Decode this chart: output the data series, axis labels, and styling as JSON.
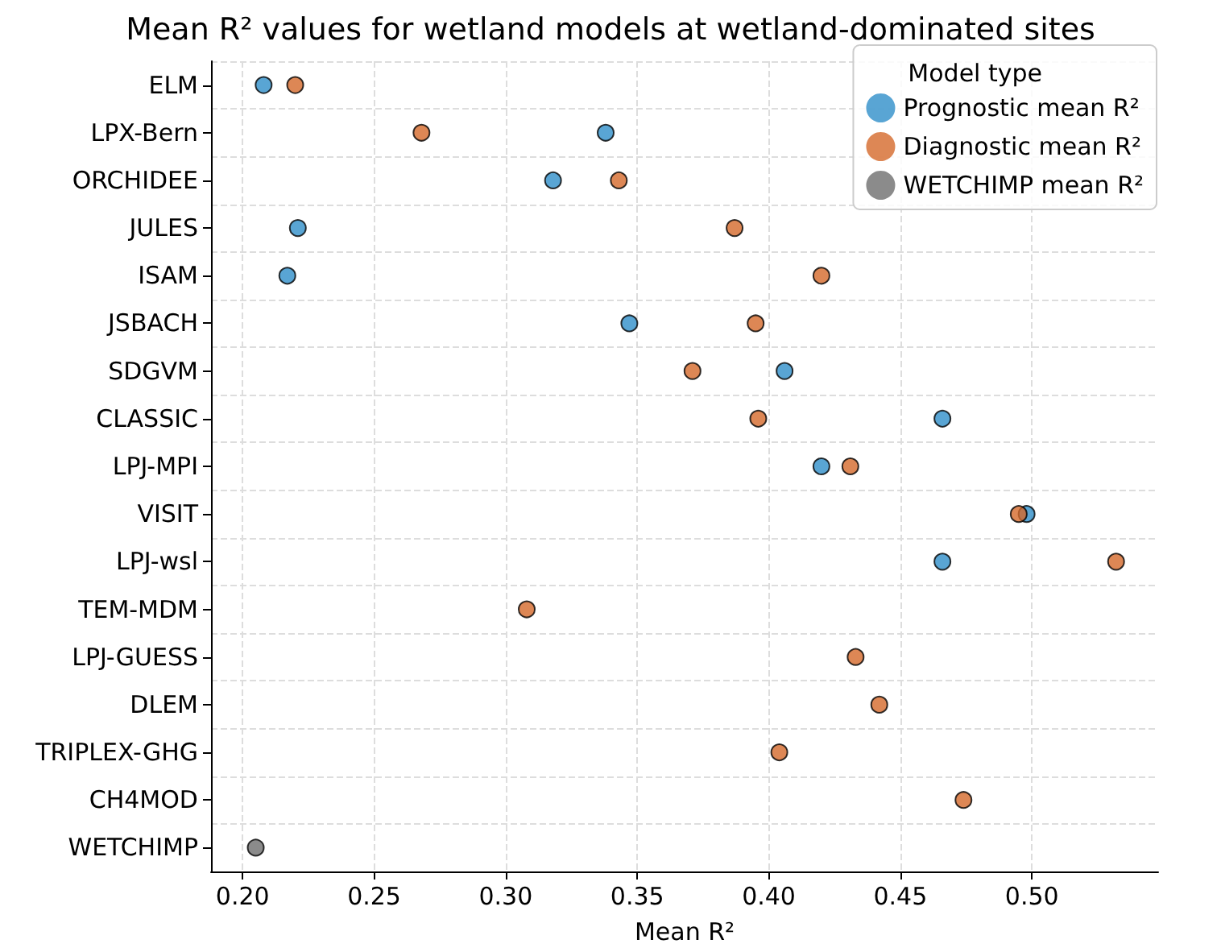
{
  "chart_data": {
    "type": "scatter",
    "orientation": "horizontal",
    "title": "Mean R² values for wetland models at wetland-dominated sites",
    "xlabel": "Mean R²",
    "legend_title": "Model type",
    "categories": [
      "ELM",
      "LPX-Bern",
      "ORCHIDEE",
      "JULES",
      "ISAM",
      "JSBACH",
      "SDGVM",
      "CLASSIC",
      "LPJ-MPI",
      "VISIT",
      "LPJ-wsl",
      "TEM-MDM",
      "LPJ-GUESS",
      "DLEM",
      "TRIPLEX-GHG",
      "CH4MOD",
      "WETCHIMP"
    ],
    "series": [
      {
        "name": "Prognostic mean R²",
        "color": "#2f8fc9",
        "values": [
          0.208,
          0.338,
          0.318,
          0.221,
          0.217,
          0.347,
          0.406,
          0.466,
          0.42,
          0.498,
          0.466,
          null,
          null,
          null,
          null,
          null,
          null
        ]
      },
      {
        "name": "Diagnostic mean R²",
        "color": "#d4692b",
        "values": [
          0.22,
          0.268,
          0.343,
          0.387,
          0.42,
          0.395,
          0.371,
          0.396,
          0.431,
          0.495,
          0.532,
          0.308,
          0.433,
          0.442,
          0.404,
          0.474,
          null
        ]
      },
      {
        "name": "WETCHIMP mean R²",
        "color": "#6e6e6e",
        "values": [
          null,
          null,
          null,
          null,
          null,
          null,
          null,
          null,
          null,
          null,
          null,
          null,
          null,
          null,
          null,
          null,
          0.205
        ]
      }
    ],
    "xlim": [
      0.188,
      0.548
    ],
    "xticks": [
      {
        "value": 0.2,
        "label": "0.20"
      },
      0.25,
      {
        "value": 0.3,
        "label": "0.30"
      },
      0.35,
      {
        "value": 0.4,
        "label": "0.40"
      },
      0.45,
      {
        "value": 0.5,
        "label": "0.50"
      }
    ],
    "grid": true,
    "legend": "top right",
    "marker": "circle"
  }
}
